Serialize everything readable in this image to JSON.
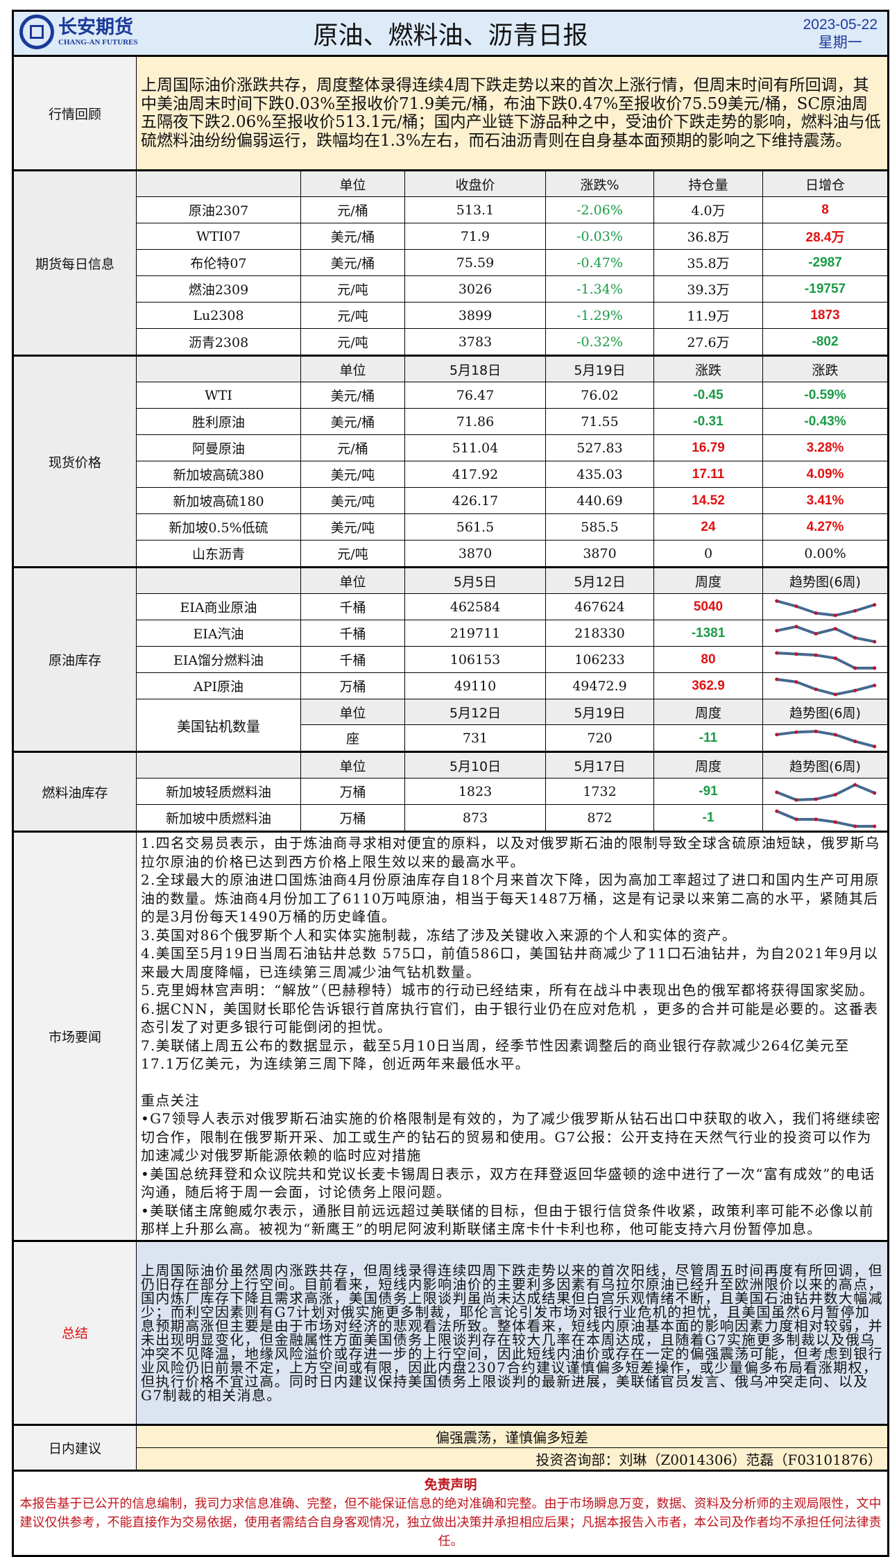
{
  "header": {
    "logo_cn": "长安期货",
    "logo_en": "CHANG-AN FUTURES",
    "title": "原油、燃料油、沥青日报",
    "date": "2023-05-22",
    "weekday": "星期一"
  },
  "overview": {
    "label": "行情回顾",
    "text": "上周国际油价涨跌共存，周度整体录得连续4周下跌走势以来的首次上涨行情，但周末时间有所回调，其中美油周末时间下跌0.03%至报收价71.9美元/桶，布油下跌0.47%至报收价75.59美元/桶，SC原油周五隔夜下跌2.06%至报收价513.1元/桶；国内产业链下游品种之中，受油价下跌走势的影响，燃料油与低硫燃料油纷纷偏弱运行，跌幅均在1.3%左右，而石油沥青则在自身基本面预期的影响之下维持震荡。"
  },
  "colors": {
    "up": "#e01010",
    "down": "#1a9a45",
    "trend_line": "#44698f",
    "trend_marker": "#c0142a"
  },
  "sections": [
    {
      "label": "期货每日信息",
      "rows": [
        {
          "type": "head",
          "cells": [
            "",
            "单位",
            "收盘价",
            "涨跌%",
            "持仓量",
            "日增仓"
          ]
        },
        {
          "cells": [
            "原油2307",
            "元/桶",
            "513.1",
            "-2.06%",
            "4.0万",
            "8"
          ],
          "tones": [
            "",
            "",
            "",
            "greenlight",
            "",
            "red"
          ]
        },
        {
          "cells": [
            "WTI07",
            "美元/桶",
            "71.9",
            "-0.03%",
            "36.8万",
            "28.4万"
          ],
          "tones": [
            "",
            "",
            "",
            "greenlight",
            "",
            "red"
          ]
        },
        {
          "cells": [
            "布伦特07",
            "美元/桶",
            "75.59",
            "-0.47%",
            "35.8万",
            "-2987"
          ],
          "tones": [
            "",
            "",
            "",
            "greenlight",
            "",
            "green"
          ]
        },
        {
          "cells": [
            "燃油2309",
            "元/吨",
            "3026",
            "-1.34%",
            "39.3万",
            "-19757"
          ],
          "tones": [
            "",
            "",
            "",
            "greenlight",
            "",
            "green"
          ]
        },
        {
          "cells": [
            "Lu2308",
            "元/吨",
            "3899",
            "-1.29%",
            "11.9万",
            "1873"
          ],
          "tones": [
            "",
            "",
            "",
            "greenlight",
            "",
            "red"
          ]
        },
        {
          "cells": [
            "沥青2308",
            "元/吨",
            "3783",
            "-0.32%",
            "27.6万",
            "-802"
          ],
          "tones": [
            "",
            "",
            "",
            "greenlight",
            "",
            "green"
          ]
        }
      ]
    },
    {
      "label": "现货价格",
      "rows": [
        {
          "type": "head",
          "cells": [
            "",
            "单位",
            "5月18日",
            "5月19日",
            "涨跌",
            "涨跌"
          ]
        },
        {
          "cells": [
            "WTI",
            "美元/桶",
            "76.47",
            "76.02",
            "-0.45",
            "-0.59%"
          ],
          "tones": [
            "",
            "",
            "",
            "",
            "green",
            "green"
          ]
        },
        {
          "cells": [
            "胜利原油",
            "美元/桶",
            "71.86",
            "71.55",
            "-0.31",
            "-0.43%"
          ],
          "tones": [
            "",
            "",
            "",
            "",
            "green",
            "green"
          ]
        },
        {
          "cells": [
            "阿曼原油",
            "元/桶",
            "511.04",
            "527.83",
            "16.79",
            "3.28%"
          ],
          "tones": [
            "",
            "",
            "",
            "",
            "red",
            "red"
          ]
        },
        {
          "cells": [
            "新加坡高硫380",
            "美元/吨",
            "417.92",
            "435.03",
            "17.11",
            "4.09%"
          ],
          "tones": [
            "",
            "",
            "",
            "",
            "red",
            "red"
          ]
        },
        {
          "cells": [
            "新加坡高硫180",
            "美元/吨",
            "426.17",
            "440.69",
            "14.52",
            "3.41%"
          ],
          "tones": [
            "",
            "",
            "",
            "",
            "red",
            "red"
          ]
        },
        {
          "cells": [
            "新加坡0.5%低硫",
            "美元/吨",
            "561.5",
            "585.5",
            "24",
            "4.27%"
          ],
          "tones": [
            "",
            "",
            "",
            "",
            "red",
            "red"
          ]
        },
        {
          "cells": [
            "山东沥青",
            "元/吨",
            "3870",
            "3870",
            "0",
            "0.00%"
          ],
          "tones": [
            "",
            "",
            "",
            "",
            "black",
            "black"
          ]
        }
      ]
    },
    {
      "label": "原油库存",
      "rows": [
        {
          "type": "head",
          "cells": [
            "",
            "单位",
            "5月5日",
            "5月12日",
            "周度",
            "趋势图(6周)"
          ]
        },
        {
          "cells": [
            "EIA商业原油",
            "千桶",
            "462584",
            "467624",
            "5040"
          ],
          "tones": [
            "",
            "",
            "",
            "",
            "red"
          ],
          "trend": [
            0.95,
            0.6,
            0.15,
            0.0,
            0.3,
            0.7
          ]
        },
        {
          "cells": [
            "EIA汽油",
            "千桶",
            "219711",
            "218330",
            "-1381"
          ],
          "tones": [
            "",
            "",
            "",
            "",
            "green"
          ],
          "trend": [
            0.73,
            1.0,
            0.53,
            0.86,
            0.26,
            0.0
          ]
        },
        {
          "cells": [
            "EIA馏分燃料油",
            "千桶",
            "106153",
            "106233",
            "80"
          ],
          "tones": [
            "",
            "",
            "",
            "",
            "red"
          ],
          "trend": [
            1.0,
            0.93,
            0.86,
            0.65,
            0.0,
            0.0
          ]
        },
        {
          "cells": [
            "API原油",
            "万桶",
            "49110",
            "49472.9",
            "362.9"
          ],
          "tones": [
            "",
            "",
            "",
            "",
            "red"
          ],
          "trend": [
            1.0,
            0.83,
            0.34,
            0.0,
            0.26,
            0.6
          ]
        },
        {
          "type": "subhead",
          "cells": [
            "美国钻机数量",
            "单位",
            "5月12日",
            "5月19日",
            "周度",
            "趋势图(6周)"
          ]
        },
        {
          "type": "subrow",
          "cells": [
            "座",
            "731",
            "720",
            "-11"
          ],
          "tones": [
            "",
            "",
            "",
            "green"
          ],
          "trend": [
            0.79,
            0.95,
            1.0,
            0.78,
            0.34,
            0.0
          ]
        }
      ]
    },
    {
      "label": "燃料油库存",
      "rows": [
        {
          "type": "head",
          "cells": [
            "",
            "单位",
            "5月10日",
            "5月17日",
            "周度",
            "趋势图(6周)"
          ]
        },
        {
          "cells": [
            "新加坡轻质燃料油",
            "万桶",
            "1823",
            "1732",
            "-91"
          ],
          "tones": [
            "",
            "",
            "",
            "",
            "green"
          ],
          "trend": [
            0.51,
            0.0,
            0.05,
            0.35,
            1.0,
            0.46
          ]
        },
        {
          "cells": [
            "新加坡中质燃料油",
            "万桶",
            "873",
            "872",
            "-1"
          ],
          "tones": [
            "",
            "",
            "",
            "",
            "green"
          ],
          "trend": [
            1.0,
            0.46,
            0.46,
            0.28,
            0.0,
            0.0
          ]
        }
      ]
    }
  ],
  "news": {
    "label": "市场要闻",
    "items": [
      "1.四名交易员表示，由于炼油商寻求相对便宜的原料，以及对俄罗斯石油的限制导致全球含硫原油短缺，俄罗斯乌拉尔原油的价格已达到西方价格上限生效以来的最高水平。",
      "2.全球最大的原油进口国炼油商4月份原油库存自18个月来首次下降，因为高加工率超过了进口和国内生产可用原油的数量。炼油商4月份加工了6110万吨原油，相当于每天1487万桶，这是有记录以来第二高的水平，紧随其后的是3月份每天1490万桶的历史峰值。",
      "3.英国对86个俄罗斯个人和实体实施制裁，冻结了涉及关键收入来源的个人和实体的资产。",
      "4.美国至5月19日当周石油钻井总数 575口，前值586口，美国钻井商减少了11口石油钻井，为自2021年9月以来最大周度降幅，已连续第三周减少油气钻机数量。",
      "5.克里姆林宫声明：“解放”（巴赫穆特）城市的行动已经结束，所有在战斗中表现出色的俄军都将获得国家奖励。",
      "6.据CNN，美国财长耶伦告诉银行首席执行官们，由于银行业仍在应对危机 ，更多的合并可能是必要的。这番表态引发了对更多银行可能倒闭的担忧。",
      "7.美联储上周五公布的数据显示，截至5月10日当周，经季节性因素调整后的商业银行存款减少264亿美元至17.1万亿美元，为连续第三周下降，创近两年来最低水平。"
    ],
    "focus_title": "重点关注",
    "focus_items": [
      "•G7领导人表示对俄罗斯石油实施的价格限制是有效的，为了减少俄罗斯从钻石出口中获取的收入，我们将继续密切合作，限制在俄罗斯开采、加工或生产的钻石的贸易和使用。G7公报：公开支持在天然气行业的投资可以作为加速减少对俄罗斯能源依赖的临时应对措施",
      "•美国总统拜登和众议院共和党议长麦卡锡周日表示，双方在拜登返回华盛顿的途中进行了一次“富有成效”的电话沟通，随后将于周一会面，讨论债务上限问题。",
      "•美联储主席鲍威尔表示，通胀目前远远超过美联储的目标，但由于银行信贷条件收紧，政策利率可能不必像以前那样上升那么高。被视为“新鹰王”的明尼阿波利斯联储主席卡什卡利也称，他可能支持六月份暂停加息。"
    ]
  },
  "summary": {
    "label": "总结",
    "text": "上周国际油价虽然周内涨跌共存，但周线录得连续四周下跌走势以来的首次阳线，尽管周五时间再度有所回调，但仍旧存在部分上行空间。目前看来，短线内影响油价的主要利多因素有乌拉尔原油已经升至欧洲限价以来的高点，国内炼厂库存下降且需求高涨，美国债务上限谈判虽尚未达成结果但白宫乐观情绪不断，且美国石油钻井数大幅减少；而利空因素则有G7计划对俄实施更多制裁，耶伦言论引发市场对银行业危机的担忧，且美国虽然6月暂停加息预期高涨但主要是由于市场对经济的悲观看法所致。整体看来，短线内原油基本面的影响因素力度相对较弱，并未出现明显变化，但金融属性方面美国债务上限谈判存在较大几率在本周达成，且随着G7实施更多制裁以及俄乌冲突不见降温，地缘风险溢价或存进一步的上行空间，因此短线内油价或存在一定的偏强震荡可能，但考虑到银行业风险仍旧前景不定，上方空间或有限，因此内盘2307合约建议谨慎偏多短差操作，或少量偏多布局看涨期权，但执行价格不宜过高。同时日内建议保持美国债务上限谈判的最新进展，美联储官员发言、俄乌冲突走向、以及G7制裁的相关消息。"
  },
  "advice": {
    "label": "日内建议",
    "text": "偏强震荡，谨慎偏多短差",
    "signature": "投资咨询部：刘琳（Z0014306）范磊（F03101876）"
  },
  "disclaimer": {
    "title": "免责声明",
    "text": "本报告基于已公开的信息编制，我司力求信息准确、完整，但不能保证信息的绝对准确和完整。由于市场瞬息万变，数据、资料及分析师的主观局限性，文中建议仅供参考，不能直接作为交易依据，使用者需结合自身客观情况，独立做出决策并承担相应后果；凡据本报告入市者，本公司及作者均不承担任何法律责任。"
  }
}
